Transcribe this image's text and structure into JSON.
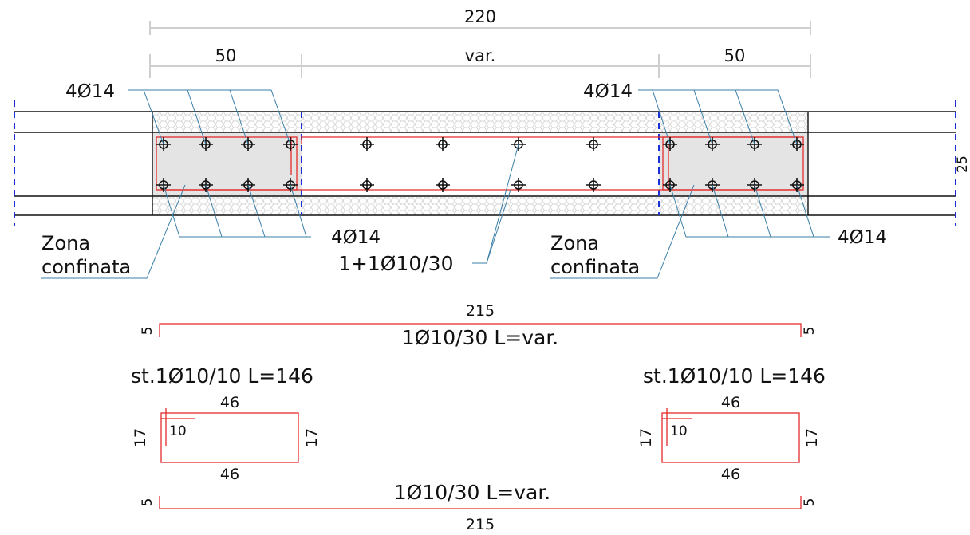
{
  "dimensions": {
    "overall": "220",
    "left_zone": "50",
    "middle": "var.",
    "right_zone": "50",
    "side_cut": "25"
  },
  "callouts": {
    "top_left_bars": "4Ø14",
    "top_right_bars": "4Ø14",
    "bottom_left_bars": "4Ø14",
    "bottom_right_bars": "4Ø14",
    "middle_bars": "1+1Ø10/30",
    "zone_left_line1": "Zona",
    "zone_left_line2": "confinata",
    "zone_right_line1": "Zona",
    "zone_right_line2": "confinata"
  },
  "bar_top": {
    "length": "215",
    "hook_left": "5",
    "hook_right": "5",
    "label": "1Ø10/30 L=var."
  },
  "stirrup_left": {
    "label": "st.1Ø10/10 L=146",
    "top": "46",
    "bottom": "46",
    "left": "17",
    "right": "17",
    "hook": "10"
  },
  "stirrup_right": {
    "label": "st.1Ø10/10 L=146",
    "top": "46",
    "bottom": "46",
    "left": "17",
    "right": "17",
    "hook": "10"
  },
  "bar_bottom": {
    "length": "215",
    "hook_left": "5",
    "hook_right": "5",
    "label": "1Ø10/30 L=var."
  },
  "colors": {
    "rebar": "#e32b2b",
    "axis": "#1a2fd6",
    "leader": "#3a7fa8",
    "dimension": "#cfcfcf",
    "concrete_fill": "#e4e4e4"
  }
}
